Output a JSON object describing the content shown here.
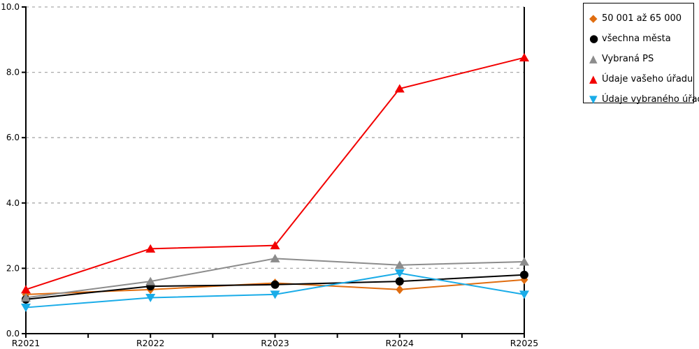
{
  "chart_data": {
    "type": "line",
    "title": "",
    "xlabel": "",
    "ylabel": "",
    "categories": [
      "R2021",
      "R2022",
      "R2023",
      "R2024",
      "R2025"
    ],
    "series": [
      {
        "name": "50 001 až 65 000",
        "color": "#E06D10",
        "marker": "diamond",
        "values": [
          1.2,
          1.35,
          1.55,
          1.35,
          1.65
        ]
      },
      {
        "name": "všechna města",
        "color": "#000000",
        "marker": "circle",
        "values": [
          1.05,
          1.45,
          1.5,
          1.6,
          1.8
        ]
      },
      {
        "name": "Vybraná PS",
        "color": "#8C8C8C",
        "marker": "triangle-up",
        "values": [
          1.1,
          1.6,
          2.3,
          2.1,
          2.2
        ]
      },
      {
        "name": "Údaje vašeho úřadu",
        "color": "#F20000",
        "marker": "triangle-up",
        "values": [
          1.35,
          2.6,
          2.7,
          7.5,
          8.45
        ]
      },
      {
        "name": "Údaje vybraného úřadu",
        "color": "#1AACE8",
        "marker": "triangle-down",
        "values": [
          0.8,
          1.1,
          1.2,
          1.85,
          1.2
        ]
      }
    ],
    "ylim": [
      0,
      10
    ],
    "y_tick_labels": [
      "0.0",
      "2.0",
      "4.0",
      "6.0",
      "8.0",
      "10.0"
    ],
    "y_tick_values": [
      0,
      2,
      4,
      6,
      8,
      10
    ],
    "grid": "dashed-horizontal",
    "legend_position": "top-right"
  },
  "colors": {
    "background": "#FFFFFF",
    "axis": "#000000",
    "grid": "#AAAAAA",
    "legend_border": "#000000"
  },
  "legend_marker_glyphs": {
    "diamond": "◆",
    "circle": "●",
    "triangle-up": "▲",
    "triangle-down": "▼"
  }
}
